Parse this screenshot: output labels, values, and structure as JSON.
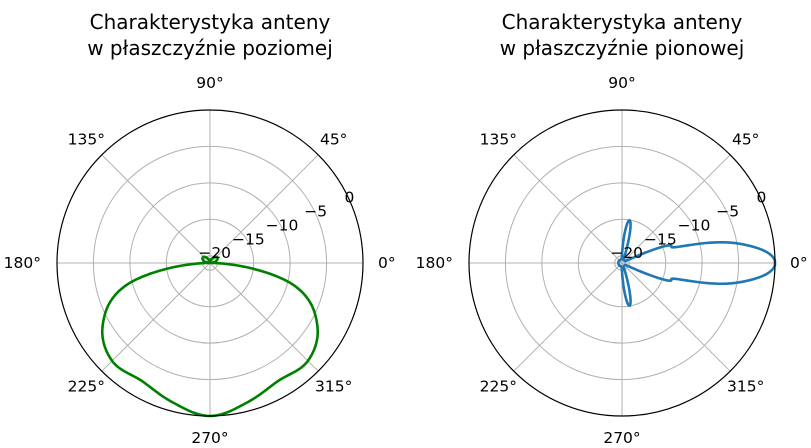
{
  "figure": {
    "background": "#ffffff",
    "grid_color": "#b0b0b0",
    "spine_color": "#000000"
  },
  "chart_data": [
    {
      "type": "polar",
      "title_lines": [
        "Charakterystyka anteny",
        "w płaszczyźnie poziomej"
      ],
      "angle_unit": "deg",
      "theta_ticks": [
        0,
        45,
        90,
        135,
        180,
        225,
        270,
        315
      ],
      "theta_tick_labels": [
        "0°",
        "45°",
        "90°",
        "135°",
        "180°",
        "225°",
        "270°",
        "315°"
      ],
      "r_ticks": [
        -20,
        -15,
        -10,
        -5,
        0
      ],
      "r_tick_labels": [
        "−20",
        "−15",
        "−10",
        "−5",
        "0"
      ],
      "rlim": [
        -21,
        0
      ],
      "grid": true,
      "series": [
        {
          "color": "#008000",
          "theta": [
            0,
            15,
            30,
            45,
            60,
            75,
            90,
            105,
            120,
            135,
            150,
            165,
            180,
            195,
            210,
            225,
            240,
            255,
            270,
            285,
            300,
            315,
            330,
            345,
            360
          ],
          "r": [
            -20.5,
            -20.2,
            -19.8,
            -19.8,
            -20.2,
            -20.6,
            -20.8,
            -20.6,
            -20.2,
            -19.8,
            -19.8,
            -20.2,
            -20.5,
            -9.0,
            -4.0,
            -2.0,
            -2.3,
            -1.2,
            0.0,
            -1.2,
            -2.3,
            -2.0,
            -4.0,
            -9.0,
            -20.5
          ]
        }
      ]
    },
    {
      "type": "polar",
      "title_lines": [
        "Charakterystyka anteny",
        "w płaszczyźnie pionowej"
      ],
      "angle_unit": "deg",
      "theta_ticks": [
        0,
        45,
        90,
        135,
        180,
        225,
        270,
        315
      ],
      "theta_tick_labels": [
        "0°",
        "45°",
        "90°",
        "135°",
        "180°",
        "225°",
        "270°",
        "315°"
      ],
      "r_ticks": [
        -20,
        -15,
        -10,
        -5,
        0
      ],
      "r_tick_labels": [
        "−20",
        "−15",
        "−10",
        "−5",
        "0"
      ],
      "rlim": [
        -21,
        0
      ],
      "grid": true,
      "series": [
        {
          "color": "#1f77b4",
          "lobes": [
            {
              "center_deg": 0,
              "peak_db": 0,
              "half_width_deg": 7
            },
            {
              "center_deg": 11,
              "peak_db": -13,
              "half_width_deg": 3
            },
            {
              "center_deg": -11,
              "peak_db": -13,
              "half_width_deg": 3
            },
            {
              "center_deg": 20,
              "peak_db": -15.5,
              "half_width_deg": 3
            },
            {
              "center_deg": -20,
              "peak_db": -15.5,
              "half_width_deg": 3
            },
            {
              "center_deg": 80,
              "peak_db": -16.5,
              "half_width_deg": 5
            },
            {
              "center_deg": -80,
              "peak_db": -16.5,
              "half_width_deg": 5
            }
          ],
          "floor_db": -20.5
        }
      ]
    }
  ]
}
